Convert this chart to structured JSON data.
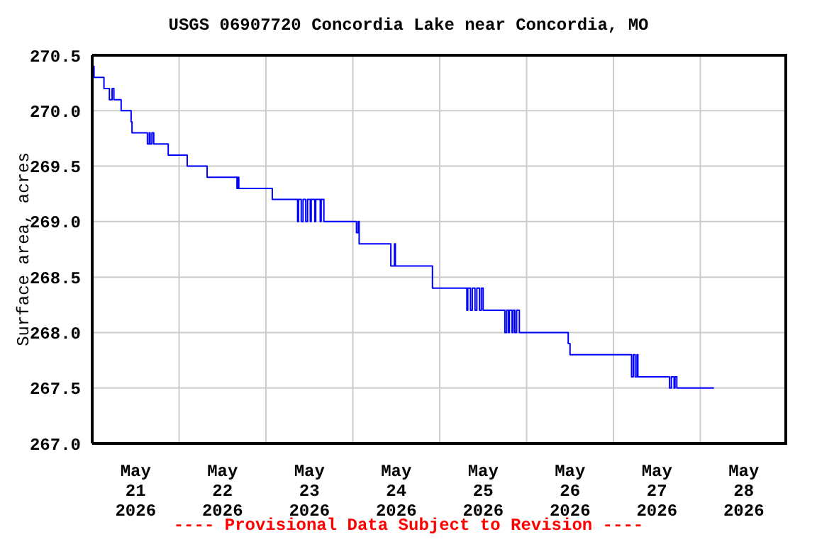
{
  "chart_data": {
    "type": "step",
    "title": "USGS 06907720 Concordia Lake near Concordia, MO",
    "ylabel": "Surface area, acres",
    "annotations": [
      "---- Provisional Data Subject to Revision ----"
    ],
    "x": [
      "2026-05-21T00:00",
      "2026-05-21T00:30",
      "2026-05-21T03:15",
      "2026-05-21T04:45",
      "2026-05-21T05:30",
      "2026-05-21T06:00",
      "2026-05-21T08:00",
      "2026-05-21T10:45",
      "2026-05-21T11:00",
      "2026-05-21T15:15",
      "2026-05-21T15:45",
      "2026-05-21T16:00",
      "2026-05-21T16:30",
      "2026-05-21T17:00",
      "2026-05-21T21:00",
      "2026-05-22T02:15",
      "2026-05-22T07:45",
      "2026-05-22T16:00",
      "2026-05-22T16:15",
      "2026-05-22T16:30",
      "2026-05-23T01:45",
      "2026-05-23T08:45",
      "2026-05-23T09:00",
      "2026-05-23T09:45",
      "2026-05-23T10:15",
      "2026-05-23T11:00",
      "2026-05-23T11:30",
      "2026-05-23T12:15",
      "2026-05-23T12:30",
      "2026-05-23T13:30",
      "2026-05-23T13:45",
      "2026-05-23T15:00",
      "2026-05-23T15:15",
      "2026-05-23T16:00",
      "2026-05-24T01:00",
      "2026-05-24T01:30",
      "2026-05-24T01:45",
      "2026-05-24T10:30",
      "2026-05-24T11:30",
      "2026-05-24T11:45",
      "2026-05-24T22:00",
      "2026-05-25T07:30",
      "2026-05-25T07:45",
      "2026-05-25T08:30",
      "2026-05-25T09:00",
      "2026-05-25T09:45",
      "2026-05-25T10:15",
      "2026-05-25T11:00",
      "2026-05-25T11:30",
      "2026-05-25T12:00",
      "2026-05-25T18:00",
      "2026-05-25T18:30",
      "2026-05-25T19:00",
      "2026-05-25T19:15",
      "2026-05-25T20:00",
      "2026-05-25T20:15",
      "2026-05-25T20:45",
      "2026-05-25T21:15",
      "2026-05-25T22:00",
      "2026-05-26T11:30",
      "2026-05-26T12:00",
      "2026-05-27T05:00",
      "2026-05-27T05:30",
      "2026-05-27T06:00",
      "2026-05-27T06:30",
      "2026-05-27T06:45",
      "2026-05-27T15:30",
      "2026-05-27T16:00",
      "2026-05-27T16:45",
      "2026-05-27T17:00",
      "2026-05-27T17:30",
      "2026-05-28T03:45"
    ],
    "series": [
      {
        "color": "#0000ff",
        "values": [
          270.4,
          270.3,
          270.2,
          270.1,
          270.2,
          270.1,
          270.0,
          269.9,
          269.8,
          269.7,
          269.8,
          269.7,
          269.8,
          269.7,
          269.6,
          269.5,
          269.4,
          269.3,
          269.4,
          269.3,
          269.2,
          269.0,
          269.2,
          269.0,
          269.2,
          269.0,
          269.2,
          269.0,
          269.2,
          269.0,
          269.2,
          269.0,
          269.2,
          269.0,
          268.9,
          269.0,
          268.8,
          268.6,
          268.8,
          268.6,
          268.4,
          268.2,
          268.4,
          268.2,
          268.4,
          268.2,
          268.4,
          268.2,
          268.4,
          268.2,
          268.0,
          268.2,
          268.0,
          268.2,
          268.0,
          268.2,
          268.0,
          268.2,
          268.0,
          267.9,
          267.8,
          267.6,
          267.8,
          267.6,
          267.8,
          267.6,
          267.5,
          267.6,
          267.5,
          267.6,
          267.5,
          267.5
        ]
      }
    ],
    "xlim": [
      "2026-05-21T00:00",
      "2026-05-29T00:00"
    ],
    "xticks": [
      {
        "value": "2026-05-21T12:00",
        "label": "May\n21\n2026"
      },
      {
        "value": "2026-05-22T00:00",
        "label": null
      },
      {
        "value": "2026-05-22T12:00",
        "label": "May\n22\n2026"
      },
      {
        "value": "2026-05-23T00:00",
        "label": null
      },
      {
        "value": "2026-05-23T12:00",
        "label": "May\n23\n2026"
      },
      {
        "value": "2026-05-24T00:00",
        "label": null
      },
      {
        "value": "2026-05-24T12:00",
        "label": "May\n24\n2026"
      },
      {
        "value": "2026-05-25T00:00",
        "label": null
      },
      {
        "value": "2026-05-25T12:00",
        "label": "May\n25\n2026"
      },
      {
        "value": "2026-05-26T00:00",
        "label": null
      },
      {
        "value": "2026-05-26T12:00",
        "label": "May\n26\n2026"
      },
      {
        "value": "2026-05-27T00:00",
        "label": null
      },
      {
        "value": "2026-05-27T12:00",
        "label": "May\n27\n2026"
      },
      {
        "value": "2026-05-28T00:00",
        "label": null
      },
      {
        "value": "2026-05-28T12:00",
        "label": "May\n28\n2026"
      }
    ],
    "ylim": [
      267.0,
      270.5
    ],
    "yticks": [
      {
        "value": 267.0,
        "label": "267.0"
      },
      {
        "value": 267.5,
        "label": "267.5"
      },
      {
        "value": 268.0,
        "label": "268.0"
      },
      {
        "value": 268.5,
        "label": "268.5"
      },
      {
        "value": 269.0,
        "label": "269.0"
      },
      {
        "value": 269.5,
        "label": "269.5"
      },
      {
        "value": 270.0,
        "label": "270.0"
      },
      {
        "value": 270.5,
        "label": "270.5"
      }
    ],
    "grid": true,
    "line_style": "solid",
    "legend": false
  }
}
